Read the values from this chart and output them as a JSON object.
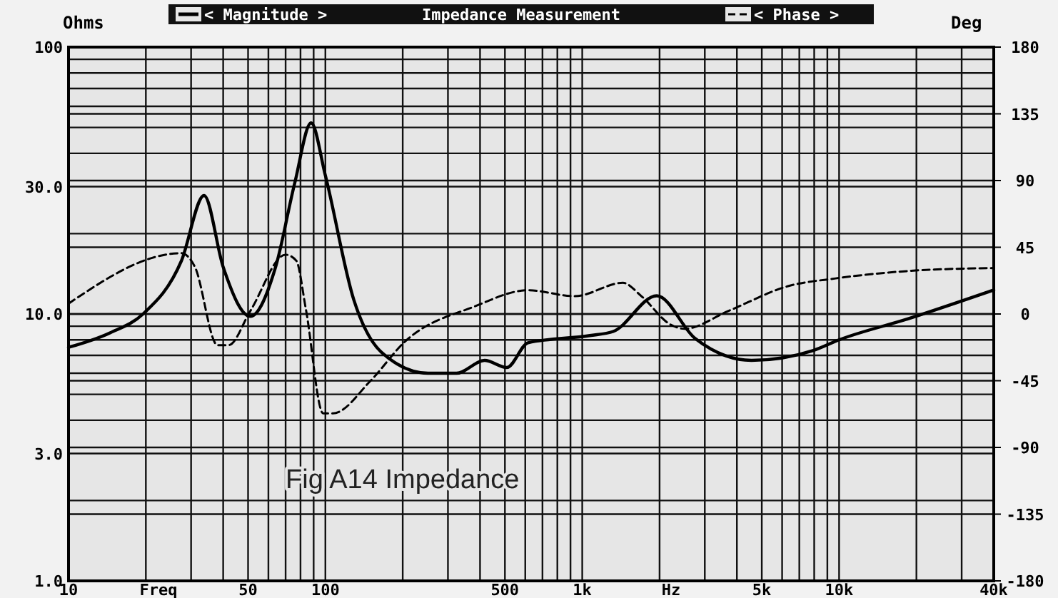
{
  "chart_data": {
    "type": "line",
    "title": "Impedance Measurement",
    "ylabel": "Ohms",
    "y2label": "Deg",
    "xlabel": "Freq",
    "annotations": [
      "Hz",
      "Fig A14 Impedance"
    ],
    "log": "xy",
    "grid": true,
    "legend": "top",
    "marker": "none",
    "xlim": [
      10,
      40000
    ],
    "xticks": [
      10,
      50,
      100,
      500,
      {
        "value": 1000,
        "label": "1k"
      },
      {
        "value": 5000,
        "label": "5k"
      },
      {
        "value": 10000,
        "label": "10k"
      },
      {
        "value": 40000,
        "label": "40k"
      }
    ],
    "ylim": [
      1,
      100
    ],
    "yticks": [
      {
        "value": 1,
        "label": "1.0"
      },
      {
        "value": 3,
        "label": "3.0"
      },
      {
        "value": 10,
        "label": "10.0"
      },
      {
        "value": 30,
        "label": "30.0"
      },
      100
    ],
    "y2lim": [
      -180,
      180
    ],
    "y2ticks": [
      -180,
      -135,
      -90,
      -45,
      0,
      45,
      90,
      135,
      180
    ],
    "series": [
      {
        "name": "< Magnitude >",
        "color": "#000000",
        "line_style": "solid",
        "x": [
          10,
          14.5,
          19.5,
          27.5,
          33.7,
          40,
          51,
          64,
          76,
          88,
          100,
          129,
          165,
          251,
          324,
          417,
          508,
          615,
          1070,
          1320,
          1950,
          2750,
          4560,
          7940,
          10000,
          18600,
          40000
        ],
        "values": [
          7.5,
          8.5,
          10,
          15.8,
          27.8,
          15,
          9.8,
          15,
          31,
          52,
          33,
          11.3,
          7.2,
          6,
          6,
          6.7,
          6.3,
          7.8,
          8.3,
          8.6,
          11.7,
          8.1,
          6.7,
          7.3,
          8,
          9.6,
          12.3
        ]
      },
      {
        "name": "< Phase >",
        "color": "#000000",
        "line_style": "dashed",
        "axis": "y2",
        "x": [
          10,
          27.5,
          31,
          38,
          42,
          51,
          70,
          77,
          84,
          98,
          107,
          150,
          203,
          380,
          615,
          935,
          1440,
          1700,
          2200,
          2500,
          3700,
          6400,
          9700,
          18600,
          40000
        ],
        "values": [
          7,
          41,
          32,
          -21,
          -21,
          2,
          40,
          36,
          3,
          -67,
          -67,
          -45,
          -19,
          5,
          16,
          12,
          21,
          12,
          -7,
          -10,
          2,
          19,
          24,
          29,
          31
        ]
      }
    ]
  }
}
